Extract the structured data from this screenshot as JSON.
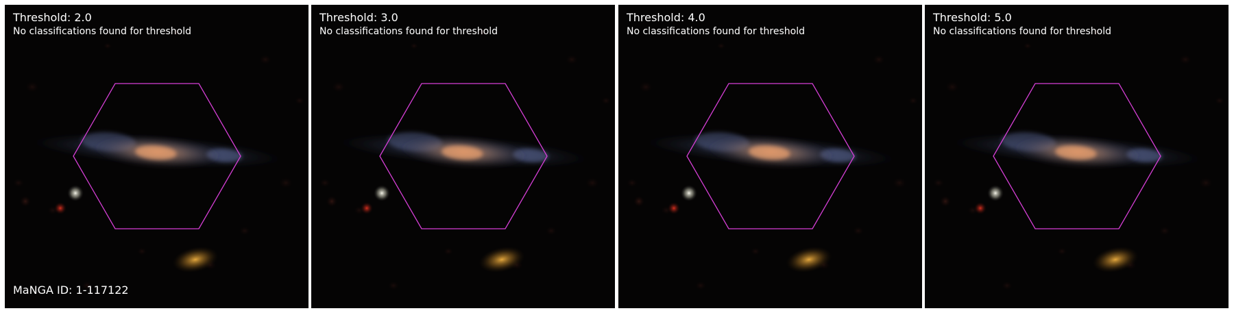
{
  "manga_id_label": "MaNGA ID: 1-117122",
  "hexagon_color": "#d63fd6",
  "panels": [
    {
      "title": "Threshold: 2.0",
      "message": "No classifications found for threshold"
    },
    {
      "title": "Threshold: 3.0",
      "message": "No classifications found for threshold"
    },
    {
      "title": "Threshold: 4.0",
      "message": "No classifications found for threshold"
    },
    {
      "title": "Threshold: 5.0",
      "message": "No classifications found for threshold"
    }
  ]
}
